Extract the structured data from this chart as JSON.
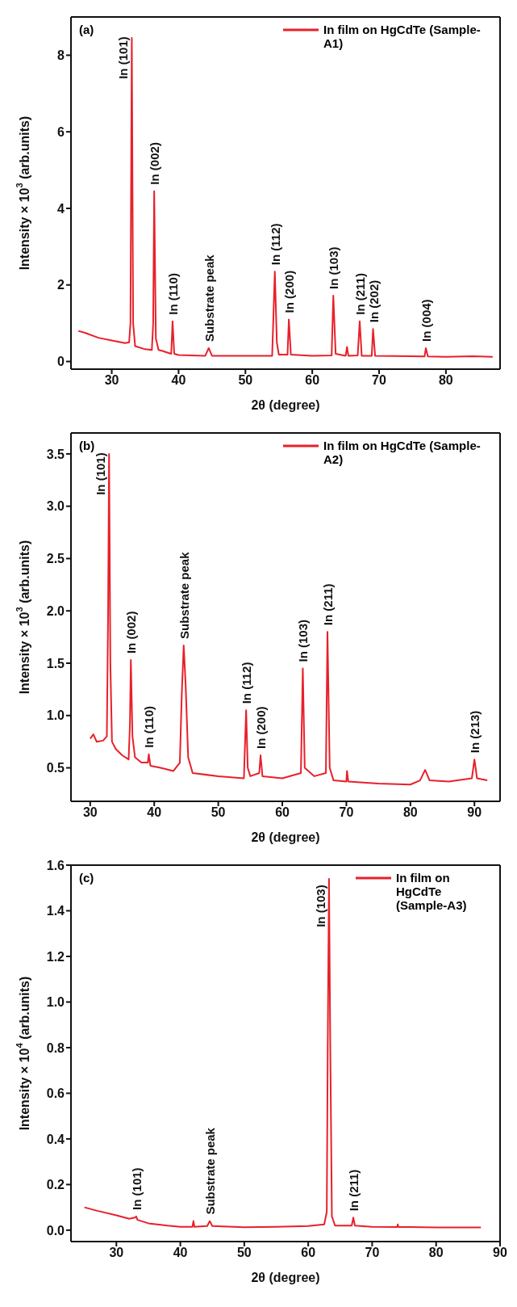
{
  "chart_data": [
    {
      "type": "line",
      "xlabel": "2θ (degree)",
      "ylabel": "Intensity × 10$^{3}$ (arb.units)",
      "xlim": [
        23.9,
        88.1
      ],
      "ylim": [
        -0.2,
        9.0
      ],
      "xticks": [
        30,
        40,
        50,
        60,
        70,
        80
      ],
      "yticks": [
        0,
        2,
        4,
        6,
        8
      ],
      "legend": "top right",
      "marker": "none",
      "line_style": "solid",
      "series": [
        {
          "name": "In film on HgCdTe (Sample-A1)",
          "color": "#e8202a",
          "x": [
            25,
            26,
            28,
            30,
            32,
            32.6,
            32.8,
            33.0,
            33.2,
            33.5,
            35,
            36,
            36.2,
            36.35,
            36.6,
            37,
            37.5,
            38.9,
            39.1,
            39.35,
            40,
            44,
            44.5,
            45,
            50,
            54,
            54.4,
            54.7,
            55,
            56.3,
            56.5,
            56.8,
            60,
            62.9,
            63.15,
            63.5,
            65,
            65.2,
            65.4,
            66.8,
            67.1,
            67.4,
            68.9,
            69.1,
            69.4,
            76.8,
            77.0,
            77.3,
            80,
            84,
            87
          ],
          "values": [
            0.8,
            0.75,
            0.62,
            0.55,
            0.48,
            0.5,
            1.0,
            8.45,
            1.0,
            0.4,
            0.32,
            0.3,
            1.0,
            4.45,
            0.6,
            0.3,
            0.28,
            0.2,
            1.05,
            0.2,
            0.17,
            0.15,
            0.35,
            0.15,
            0.15,
            0.15,
            2.35,
            0.5,
            0.18,
            0.18,
            1.1,
            0.18,
            0.15,
            0.16,
            1.72,
            0.2,
            0.15,
            0.38,
            0.15,
            0.16,
            1.05,
            0.15,
            0.15,
            0.85,
            0.15,
            0.13,
            0.35,
            0.13,
            0.12,
            0.14,
            0.12
          ]
        }
      ],
      "annotations": [
        "(a)",
        {
          "text": "In (101)",
          "x": 33.0,
          "y": 8.45
        },
        {
          "text": "In (002)",
          "x": 36.35,
          "y": 4.45
        },
        {
          "text": "In (110)",
          "x": 39.1,
          "y": 1.05
        },
        {
          "text": "Substrate peak",
          "x": 44.5,
          "y": 0.35
        },
        {
          "text": "In (112)",
          "x": 54.4,
          "y": 2.35
        },
        {
          "text": "In (200)",
          "x": 56.5,
          "y": 1.1
        },
        {
          "text": "In (103)",
          "x": 63.15,
          "y": 1.72
        },
        {
          "text": "In (211)",
          "x": 67.1,
          "y": 1.05
        },
        {
          "text": "In (202)",
          "x": 69.1,
          "y": 0.85
        },
        {
          "text": "In (004)",
          "x": 77.0,
          "y": 0.35
        }
      ]
    },
    {
      "type": "line",
      "xlabel": "2θ (degree)",
      "ylabel": "Intensity × 10$^{3}$ (arb.units)",
      "xlim": [
        27,
        94
      ],
      "ylim": [
        0.18,
        3.7
      ],
      "xticks": [
        30,
        40,
        50,
        60,
        70,
        80,
        90
      ],
      "yticks": [
        {
          "value": 0.5,
          "label": "0.5"
        },
        {
          "value": 1,
          "label": "1.0"
        },
        {
          "value": 1.5,
          "label": "1.5"
        },
        {
          "value": 2,
          "label": "2.0"
        },
        {
          "value": 2.5,
          "label": "2.5"
        },
        {
          "value": 3,
          "label": "3.0"
        },
        {
          "value": 3.5,
          "label": "3.5"
        }
      ],
      "legend": "top right",
      "marker": "none",
      "line_style": "solid",
      "series": [
        {
          "name": "In film on HgCdTe (Sample-A2)",
          "color": "#e8202a",
          "x": [
            30,
            30.5,
            31,
            32,
            32.6,
            32.8,
            32.95,
            33.15,
            33.4,
            34,
            35,
            36,
            36.2,
            36.35,
            36.6,
            37,
            38,
            39,
            39.15,
            39.4,
            41,
            43,
            44,
            44.3,
            44.6,
            44.9,
            45.3,
            46,
            50,
            54,
            54.35,
            54.6,
            55,
            56.4,
            56.6,
            56.9,
            60,
            62.9,
            63.2,
            63.5,
            65,
            66.8,
            67.05,
            67.4,
            68,
            70,
            70.1,
            70.3,
            75,
            80,
            81.5,
            82.3,
            83,
            86,
            89.6,
            90,
            90.4,
            92
          ],
          "values": [
            0.78,
            0.82,
            0.75,
            0.76,
            0.8,
            2.0,
            3.5,
            1.5,
            0.75,
            0.68,
            0.62,
            0.58,
            0.9,
            1.53,
            0.8,
            0.6,
            0.55,
            0.55,
            0.63,
            0.52,
            0.5,
            0.47,
            0.55,
            1.2,
            1.67,
            1.3,
            0.6,
            0.45,
            0.42,
            0.4,
            1.05,
            0.5,
            0.42,
            0.45,
            0.62,
            0.42,
            0.4,
            0.45,
            1.45,
            0.5,
            0.42,
            0.45,
            1.8,
            0.5,
            0.38,
            0.37,
            0.47,
            0.37,
            0.35,
            0.34,
            0.38,
            0.48,
            0.38,
            0.37,
            0.4,
            0.58,
            0.4,
            0.38
          ]
        }
      ],
      "annotations": [
        "(b)",
        {
          "text": "In (101)",
          "x": 32.95,
          "y": 3.5
        },
        {
          "text": "In (002)",
          "x": 36.35,
          "y": 1.53
        },
        {
          "text": "In (110)",
          "x": 39.15,
          "y": 0.63
        },
        {
          "text": "Substrate peak",
          "x": 44.6,
          "y": 1.67
        },
        {
          "text": "In (112)",
          "x": 54.35,
          "y": 1.05
        },
        {
          "text": "In (200)",
          "x": 56.6,
          "y": 0.62
        },
        {
          "text": "In (103)",
          "x": 63.2,
          "y": 1.45
        },
        {
          "text": "In (211)",
          "x": 67.05,
          "y": 1.8
        },
        {
          "text": "In (213)",
          "x": 90,
          "y": 0.58
        }
      ]
    },
    {
      "type": "line",
      "xlabel": "2θ (degree)",
      "ylabel": "Intensity × 10$^{4}$ (arb.units)",
      "xlim": [
        22.9,
        90
      ],
      "ylim": [
        -0.05,
        1.6
      ],
      "xticks": [
        30,
        40,
        50,
        60,
        70,
        80,
        90
      ],
      "yticks": [
        {
          "value": 0,
          "label": "0.0"
        },
        {
          "value": 0.2,
          "label": "0.2"
        },
        {
          "value": 0.4,
          "label": "0.4"
        },
        {
          "value": 0.6,
          "label": "0.6"
        },
        {
          "value": 0.8,
          "label": "0.8"
        },
        {
          "value": 1,
          "label": "1.0"
        },
        {
          "value": 1.2,
          "label": "1.2"
        },
        {
          "value": 1.4,
          "label": "1.4"
        },
        {
          "value": 1.6,
          "label": "1.6"
        }
      ],
      "legend": "top right",
      "marker": "none",
      "line_style": "solid",
      "series": [
        {
          "name": "In film on HgCdTe (Sample-A3)",
          "color": "#e8202a",
          "x": [
            25,
            27,
            30,
            32,
            32.9,
            33.1,
            33.3,
            35,
            38,
            40,
            41.9,
            42.05,
            42.2,
            44.2,
            44.6,
            45,
            50,
            55,
            60,
            62.5,
            62.9,
            63.05,
            63.25,
            63.45,
            63.7,
            64.2,
            66.8,
            67.05,
            67.3,
            70,
            73.9,
            74,
            74.1,
            80,
            87
          ],
          "values": [
            0.1,
            0.085,
            0.065,
            0.05,
            0.055,
            0.06,
            0.045,
            0.03,
            0.02,
            0.015,
            0.015,
            0.04,
            0.015,
            0.018,
            0.04,
            0.018,
            0.013,
            0.015,
            0.018,
            0.025,
            0.08,
            0.8,
            1.54,
            0.8,
            0.06,
            0.02,
            0.02,
            0.055,
            0.02,
            0.015,
            0.014,
            0.025,
            0.014,
            0.012,
            0.012
          ]
        }
      ],
      "annotations": [
        "(c)",
        {
          "text": "In (101)",
          "x": 33.1,
          "y": 0.06
        },
        {
          "text": "Substrate peak",
          "x": 44.6,
          "y": 0.04
        },
        {
          "text": "In (103)",
          "x": 63.25,
          "y": 1.54
        },
        {
          "text": "In (211)",
          "x": 67.05,
          "y": 0.055
        }
      ]
    }
  ]
}
